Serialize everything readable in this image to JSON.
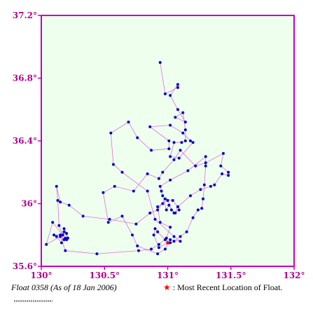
{
  "chart_data": {
    "type": "line",
    "x_axis": {
      "range": [
        130,
        132
      ],
      "ticks": [
        130,
        130.5,
        131,
        131.5,
        132
      ],
      "tick_labels": [
        "130°",
        "130.5°",
        "131°",
        "131.5°",
        "132°"
      ]
    },
    "y_axis": {
      "range": [
        35.6,
        37.2
      ],
      "ticks": [
        35.6,
        36.0,
        36.4,
        36.8,
        37.2
      ],
      "tick_labels": [
        "35.6°",
        "36°",
        "36.4°",
        "36.8°",
        "37.2°"
      ]
    },
    "grid": false,
    "track": {
      "lon": [
        130.94,
        130.98,
        131.08,
        131.08,
        131.02,
        131.08,
        131.14,
        131.06,
        131.12,
        131.14,
        131.14,
        131.11,
        131.05,
        131.02,
        131.09,
        131.2,
        131.18,
        131.12,
        131.02,
        130.86,
        131.01,
        131.01,
        130.87,
        130.76,
        130.69,
        130.55,
        130.57,
        130.64,
        130.84,
        130.9,
        131.05,
        131.1,
        131.02,
        130.98,
        130.92,
        130.76,
        130.72,
        130.64,
        130.53,
        130.49,
        130.58,
        130.73,
        130.84,
        130.93,
        130.96,
        131.05,
        131.1,
        131.22,
        131.3,
        131.44,
        131.42,
        131.48,
        131.48,
        131.43,
        131.37,
        131.34,
        131.26,
        131.18,
        131.08,
        131.04,
        130.98,
        130.92,
        130.86,
        130.75,
        130.54,
        130.33,
        130.22,
        130.15,
        130.12,
        130.13,
        130.14,
        130.17,
        130.18,
        130.2,
        130.21,
        130.18,
        130.16,
        130.12,
        130.1,
        130.15,
        130.18,
        130.19,
        130.2,
        130.09,
        130.04,
        130.15,
        130.19,
        130.44,
        130.77,
        130.87,
        130.93,
        130.99,
        131.02,
        130.94,
        130.92,
        130.96,
        131.0,
        131.03,
        131.06,
        131.08,
        131.09,
        131.05,
        131.01,
        130.99,
        130.96,
        130.95,
        130.94,
        131.02,
        131.16,
        131.3,
        131.3,
        131.29,
        131.28,
        131.27,
        131.24,
        131.2,
        131.15,
        131.1,
        131.05,
        131.02,
        130.98,
        130.92,
        130.9,
        130.89,
        130.93,
        131.0
      ],
      "lat": [
        36.9,
        36.7,
        36.74,
        36.76,
        36.69,
        36.6,
        36.52,
        36.55,
        36.58,
        36.47,
        36.4,
        36.39,
        36.39,
        36.3,
        36.29,
        36.39,
        36.4,
        36.45,
        36.5,
        36.49,
        36.4,
        36.35,
        36.34,
        36.42,
        36.52,
        36.45,
        36.25,
        36.2,
        36.08,
        35.9,
        35.79,
        35.76,
        35.77,
        35.71,
        35.68,
        35.73,
        35.8,
        35.92,
        35.88,
        36.07,
        36.11,
        36.08,
        36.19,
        36.16,
        36.2,
        36.28,
        36.34,
        36.24,
        36.26,
        36.32,
        36.24,
        36.2,
        36.18,
        36.19,
        36.12,
        36.11,
        36.09,
        36.05,
        35.98,
        36.02,
        36.03,
        35.96,
        35.94,
        35.87,
        35.9,
        35.92,
        35.99,
        36.01,
        36.11,
        36.02,
        35.86,
        35.8,
        35.84,
        35.81,
        35.78,
        35.82,
        35.75,
        35.79,
        35.8,
        35.8,
        35.77,
        35.78,
        35.77,
        35.88,
        35.74,
        35.79,
        35.7,
        35.68,
        35.7,
        35.71,
        35.74,
        35.78,
        35.85,
        35.88,
        35.98,
        36.0,
        36.02,
        35.96,
        35.94,
        35.98,
        35.96,
        35.94,
        35.99,
        35.96,
        36.05,
        36.08,
        36.11,
        36.15,
        36.21,
        36.3,
        36.24,
        36.12,
        36.03,
        35.97,
        35.96,
        35.91,
        35.82,
        35.79,
        35.76,
        35.75,
        35.77,
        35.82,
        35.84,
        35.8,
        35.72,
        35.75
      ]
    },
    "most_recent": {
      "lon": 131.0,
      "lat": 35.75
    },
    "caption_left": "Float 0358 (As of 18 Jan 2006)",
    "caption_right": ": Most Recent Location of Float.",
    "legend_marker": "★"
  },
  "colors": {
    "plot_bg": "#eeffee",
    "frame": "#c000c0",
    "track_line": "#e070e0",
    "point": "#0000cc",
    "latest": "#ff0000",
    "tick_text": "#b0008c"
  }
}
